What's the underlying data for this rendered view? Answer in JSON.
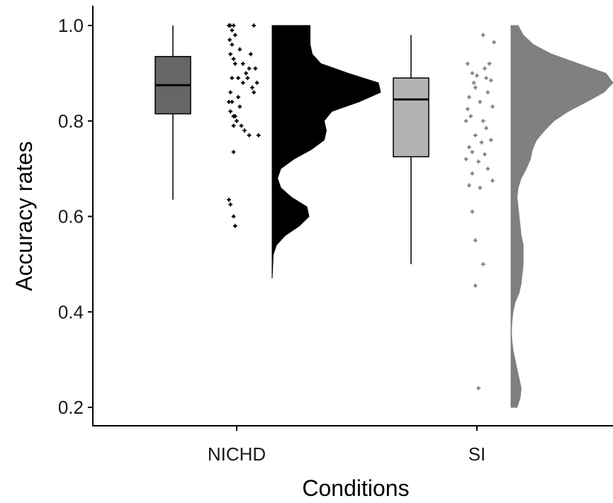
{
  "chart_data": {
    "type": "raincloud",
    "title": "",
    "xlabel": "Conditions",
    "ylabel": "Accuracy rates",
    "ylim": [
      0.2,
      1.0
    ],
    "yticks": [
      "0.2",
      "0.4",
      "0.6",
      "0.8",
      "1.0"
    ],
    "grid": false,
    "legend": "none",
    "categories": [
      "NICHD",
      "SI"
    ],
    "series": [
      {
        "category": "NICHD",
        "box_color": "#666666",
        "point_color": "#000000",
        "density_color": "#000000",
        "box": {
          "min": 0.635,
          "q1": 0.815,
          "median": 0.875,
          "q3": 0.935,
          "max": 1.0
        },
        "points": [
          [
            -0.1,
            1.0
          ],
          [
            -0.08,
            1.0
          ],
          [
            -0.04,
            1.0
          ],
          [
            0.22,
            1.0
          ],
          [
            -0.06,
            0.99
          ],
          [
            -0.02,
            0.98
          ],
          [
            -0.09,
            0.97
          ],
          [
            -0.06,
            0.96
          ],
          [
            -0.08,
            0.94
          ],
          [
            0.04,
            0.95
          ],
          [
            -0.04,
            0.93
          ],
          [
            0.18,
            0.94
          ],
          [
            -0.02,
            0.92
          ],
          [
            0.08,
            0.92
          ],
          [
            0.16,
            0.91
          ],
          [
            0.12,
            0.9
          ],
          [
            0.24,
            0.91
          ],
          [
            0.14,
            0.89
          ],
          [
            -0.06,
            0.89
          ],
          [
            0.02,
            0.89
          ],
          [
            0.08,
            0.88
          ],
          [
            0.26,
            0.88
          ],
          [
            0.2,
            0.87
          ],
          [
            0.22,
            0.86
          ],
          [
            -0.08,
            0.86
          ],
          [
            0.02,
            0.85
          ],
          [
            -0.1,
            0.84
          ],
          [
            -0.06,
            0.84
          ],
          [
            0.04,
            0.83
          ],
          [
            -0.08,
            0.82
          ],
          [
            -0.04,
            0.81
          ],
          [
            -0.02,
            0.81
          ],
          [
            0.0,
            0.8
          ],
          [
            0.06,
            0.79
          ],
          [
            -0.04,
            0.79
          ],
          [
            0.1,
            0.78
          ],
          [
            0.16,
            0.77
          ],
          [
            0.28,
            0.77
          ],
          [
            -0.04,
            0.735
          ],
          [
            -0.1,
            0.635
          ],
          [
            -0.08,
            0.625
          ],
          [
            -0.04,
            0.6
          ],
          [
            -0.02,
            0.58
          ]
        ],
        "density": {
          "y": [
            0.47,
            0.52,
            0.54,
            0.56,
            0.58,
            0.6,
            0.62,
            0.64,
            0.66,
            0.68,
            0.7,
            0.72,
            0.74,
            0.76,
            0.78,
            0.8,
            0.82,
            0.84,
            0.86,
            0.88,
            0.9,
            0.92,
            0.94,
            0.96,
            0.98,
            1.0
          ],
          "width": [
            0.0,
            0.01,
            0.04,
            0.12,
            0.25,
            0.34,
            0.32,
            0.18,
            0.08,
            0.05,
            0.08,
            0.2,
            0.36,
            0.48,
            0.5,
            0.48,
            0.55,
            0.8,
            1.0,
            0.98,
            0.7,
            0.45,
            0.37,
            0.35,
            0.35,
            0.35
          ]
        }
      },
      {
        "category": "SI",
        "box_color": "#b3b3b3",
        "point_color": "#808080",
        "density_color": "#808080",
        "box": {
          "min": 0.5,
          "q1": 0.725,
          "median": 0.845,
          "q3": 0.89,
          "max": 0.98
        },
        "points": [
          [
            0.08,
            0.98
          ],
          [
            0.22,
            0.965
          ],
          [
            -0.12,
            0.92
          ],
          [
            0.16,
            0.92
          ],
          [
            0.1,
            0.91
          ],
          [
            -0.06,
            0.9
          ],
          [
            0.0,
            0.895
          ],
          [
            0.12,
            0.89
          ],
          [
            -0.04,
            0.88
          ],
          [
            0.18,
            0.885
          ],
          [
            -0.02,
            0.87
          ],
          [
            0.14,
            0.86
          ],
          [
            -0.1,
            0.85
          ],
          [
            0.04,
            0.84
          ],
          [
            -0.12,
            0.825
          ],
          [
            0.2,
            0.83
          ],
          [
            -0.08,
            0.81
          ],
          [
            0.08,
            0.8
          ],
          [
            -0.14,
            0.8
          ],
          [
            0.12,
            0.785
          ],
          [
            -0.02,
            0.77
          ],
          [
            0.18,
            0.76
          ],
          [
            0.06,
            0.755
          ],
          [
            -0.1,
            0.745
          ],
          [
            -0.06,
            0.735
          ],
          [
            0.1,
            0.73
          ],
          [
            -0.14,
            0.72
          ],
          [
            0.02,
            0.715
          ],
          [
            0.14,
            0.7
          ],
          [
            -0.06,
            0.69
          ],
          [
            0.2,
            0.675
          ],
          [
            -0.1,
            0.665
          ],
          [
            0.04,
            0.66
          ],
          [
            -0.06,
            0.61
          ],
          [
            -0.02,
            0.55
          ],
          [
            0.08,
            0.5
          ],
          [
            -0.02,
            0.455
          ],
          [
            0.02,
            0.24
          ]
        ],
        "density": {
          "y": [
            0.2,
            0.22,
            0.24,
            0.26,
            0.28,
            0.3,
            0.32,
            0.34,
            0.36,
            0.38,
            0.4,
            0.42,
            0.44,
            0.46,
            0.48,
            0.5,
            0.52,
            0.54,
            0.56,
            0.58,
            0.6,
            0.62,
            0.64,
            0.66,
            0.68,
            0.7,
            0.72,
            0.74,
            0.76,
            0.78,
            0.8,
            0.82,
            0.84,
            0.86,
            0.88,
            0.9,
            0.92,
            0.94,
            0.96,
            0.98,
            1.0
          ],
          "width": [
            0.06,
            0.09,
            0.1,
            0.08,
            0.06,
            0.04,
            0.02,
            0.01,
            0.005,
            0.01,
            0.02,
            0.04,
            0.08,
            0.1,
            0.11,
            0.12,
            0.12,
            0.12,
            0.1,
            0.09,
            0.08,
            0.07,
            0.06,
            0.07,
            0.1,
            0.15,
            0.19,
            0.21,
            0.25,
            0.33,
            0.42,
            0.56,
            0.74,
            0.91,
            1.0,
            0.93,
            0.66,
            0.4,
            0.22,
            0.12,
            0.07
          ]
        }
      }
    ]
  }
}
